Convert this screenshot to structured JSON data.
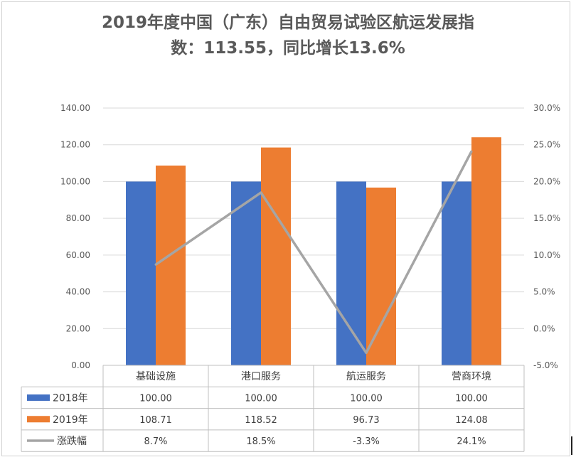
{
  "chart_data": {
    "type": "bar",
    "title_line1": "2019年度中国（广东）自由贸易试验区航运发展指",
    "title_line2": "数：113.55，同比增长13.6%",
    "categories": [
      "基础设施",
      "港口服务",
      "航运服务",
      "营商环境"
    ],
    "series": [
      {
        "name": "2018年",
        "type": "bar",
        "color": "#4472C4",
        "values": [
          100.0,
          100.0,
          100.0,
          100.0
        ],
        "labels": [
          "100.00",
          "100.00",
          "100.00",
          "100.00"
        ]
      },
      {
        "name": "2019年",
        "type": "bar",
        "color": "#ED7D31",
        "values": [
          108.71,
          118.52,
          96.73,
          124.08
        ],
        "labels": [
          "108.71",
          "118.52",
          "96.73",
          "124.08"
        ]
      },
      {
        "name": "涨跌幅",
        "type": "line",
        "axis": "right",
        "color": "#A5A5A5",
        "values": [
          8.7,
          18.5,
          -3.3,
          24.1
        ],
        "labels": [
          "8.7%",
          "18.5%",
          "-3.3%",
          "24.1%"
        ]
      }
    ],
    "ylim_left": [
      0,
      140
    ],
    "yticks_left": [
      "0.00",
      "20.00",
      "40.00",
      "60.00",
      "80.00",
      "100.00",
      "120.00",
      "140.00"
    ],
    "ylim_right": [
      -5,
      30
    ],
    "yticks_right": [
      "-5.0%",
      "0.0%",
      "5.0%",
      "10.0%",
      "15.0%",
      "20.0%",
      "25.0%",
      "30.0%"
    ],
    "grid": true,
    "legend": "data-table"
  }
}
